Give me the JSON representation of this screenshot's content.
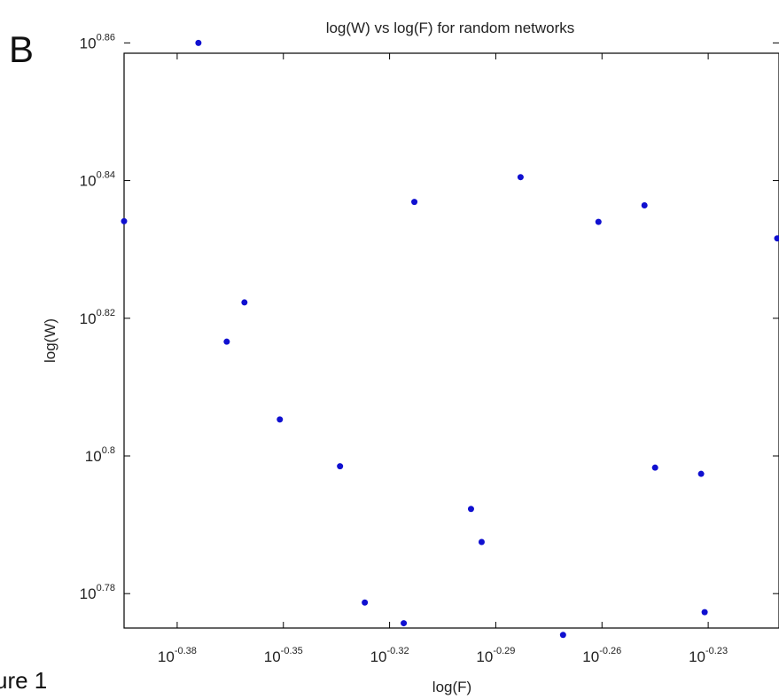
{
  "panel_label": "B",
  "caption_fragment": "ure 1",
  "colors": {
    "marker": "#1010d0",
    "axes": "#000000",
    "background": "#ffffff"
  },
  "chart_data": {
    "type": "scatter",
    "title": "log(W) vs log(F) for random networks",
    "xlabel": "log(F)",
    "ylabel": "log(W)",
    "xscale": "log",
    "yscale": "log",
    "grid": false,
    "xlim_exponent": [
      -0.395,
      -0.21
    ],
    "ylim_exponent": [
      0.775,
      0.8585
    ],
    "x_ticks": [
      {
        "exponent": -0.38,
        "base": "10",
        "sup": "-0.38"
      },
      {
        "exponent": -0.35,
        "base": "10",
        "sup": "-0.35"
      },
      {
        "exponent": -0.32,
        "base": "10",
        "sup": "-0.32"
      },
      {
        "exponent": -0.29,
        "base": "10",
        "sup": "-0.29"
      },
      {
        "exponent": -0.26,
        "base": "10",
        "sup": "-0.26"
      },
      {
        "exponent": -0.23,
        "base": "10",
        "sup": "-0.23"
      }
    ],
    "y_ticks": [
      {
        "exponent": 0.78,
        "base": "10",
        "sup": "0.78"
      },
      {
        "exponent": 0.8,
        "base": "10",
        "sup": "0.8"
      },
      {
        "exponent": 0.82,
        "base": "10",
        "sup": "0.82"
      },
      {
        "exponent": 0.84,
        "base": "10",
        "sup": "0.84"
      },
      {
        "exponent": 0.86,
        "base": "10",
        "sup": "0.86"
      }
    ],
    "points_log10": [
      {
        "x": -0.395,
        "y": 0.8341
      },
      {
        "x": -0.374,
        "y": 0.86
      },
      {
        "x": -0.366,
        "y": 0.8166
      },
      {
        "x": -0.361,
        "y": 0.8223
      },
      {
        "x": -0.351,
        "y": 0.8053
      },
      {
        "x": -0.334,
        "y": 0.7985
      },
      {
        "x": -0.327,
        "y": 0.7787
      },
      {
        "x": -0.316,
        "y": 0.7757
      },
      {
        "x": -0.313,
        "y": 0.8369
      },
      {
        "x": -0.297,
        "y": 0.7923
      },
      {
        "x": -0.294,
        "y": 0.7875
      },
      {
        "x": -0.283,
        "y": 0.8405
      },
      {
        "x": -0.271,
        "y": 0.774
      },
      {
        "x": -0.261,
        "y": 0.834
      },
      {
        "x": -0.248,
        "y": 0.8364
      },
      {
        "x": -0.245,
        "y": 0.7983
      },
      {
        "x": -0.232,
        "y": 0.7974
      },
      {
        "x": -0.231,
        "y": 0.7773
      },
      {
        "x": -0.2105,
        "y": 0.8316
      }
    ]
  }
}
